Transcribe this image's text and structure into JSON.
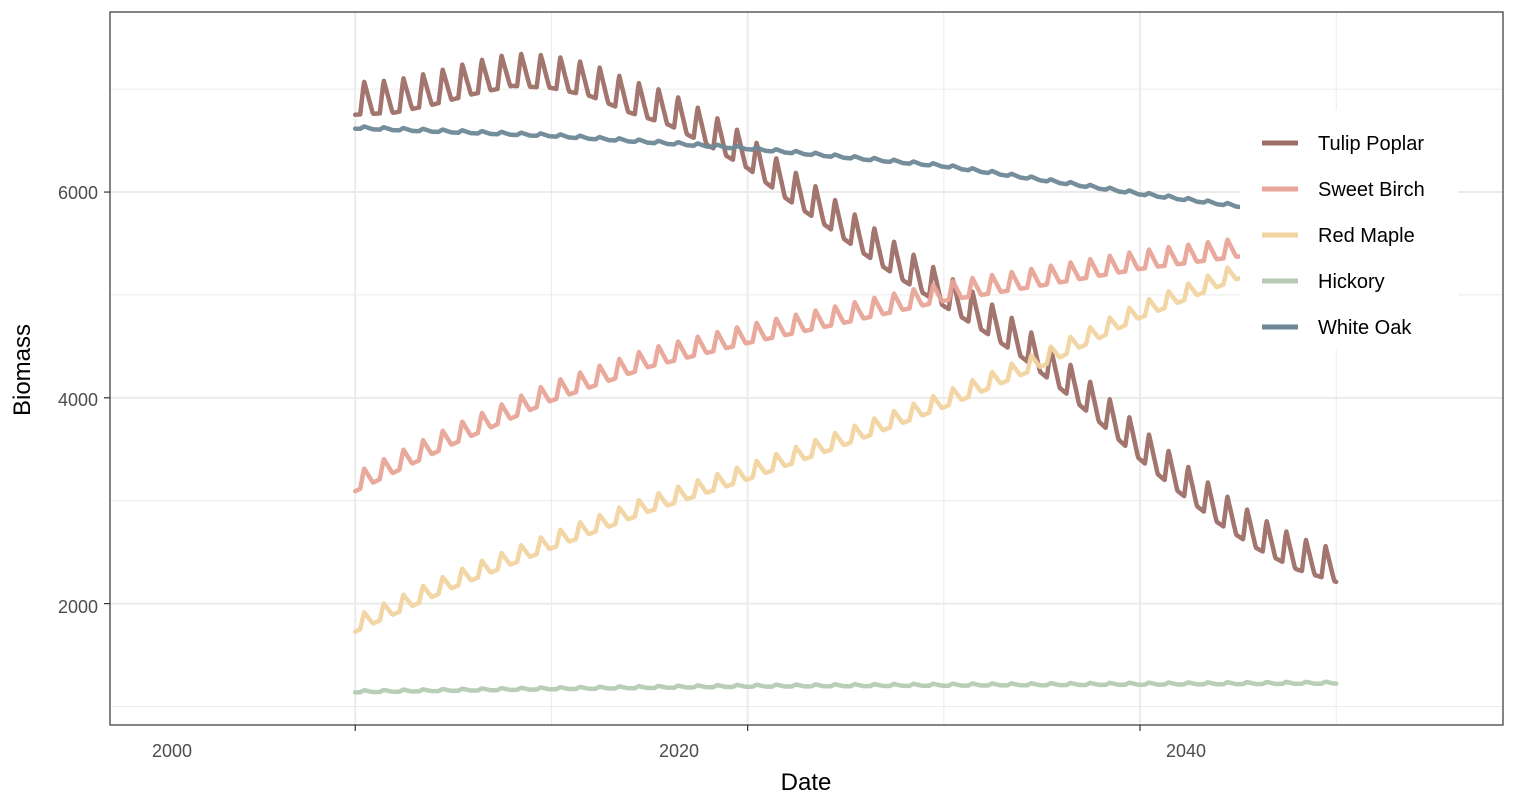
{
  "chart_data": {
    "type": "line",
    "title": "",
    "xlabel": "Date",
    "ylabel": "Biomass",
    "xlim": [
      1987.5,
      2058.5
    ],
    "ylim": [
      820,
      7750
    ],
    "x_ticks": [
      2000,
      2020,
      2040
    ],
    "x_minor_ticks": [
      2010,
      2030,
      2050
    ],
    "y_ticks": [
      2000,
      4000,
      6000
    ],
    "y_minor_ticks": [
      1000,
      3000,
      5000,
      7000
    ],
    "x_tick_labels": [
      "2000",
      "2020",
      "2040"
    ],
    "y_tick_labels": [
      "2000",
      "4000",
      "6000"
    ],
    "grid": true,
    "legend_position": "right",
    "x_range": [
      2000,
      2050
    ],
    "series": [
      {
        "name": "Tulip Poplar",
        "color": "#9E6E67",
        "seasonal_amplitude": 320,
        "points": [
          [
            2000,
            6800
          ],
          [
            2002,
            6820
          ],
          [
            2004,
            6900
          ],
          [
            2006,
            7000
          ],
          [
            2008,
            7080
          ],
          [
            2010,
            7060
          ],
          [
            2012,
            6980
          ],
          [
            2014,
            6820
          ],
          [
            2016,
            6700
          ],
          [
            2018,
            6500
          ],
          [
            2020,
            6280
          ],
          [
            2022,
            5980
          ],
          [
            2024,
            5720
          ],
          [
            2026,
            5440
          ],
          [
            2028,
            5180
          ],
          [
            2030,
            4940
          ],
          [
            2032,
            4700
          ],
          [
            2034,
            4440
          ],
          [
            2036,
            4130
          ],
          [
            2038,
            3800
          ],
          [
            2040,
            3450
          ],
          [
            2042,
            3130
          ],
          [
            2044,
            2830
          ],
          [
            2046,
            2580
          ],
          [
            2048,
            2380
          ],
          [
            2050,
            2260
          ]
        ]
      },
      {
        "name": "Sweet Birch",
        "color": "#E8A598",
        "seasonal_amplitude": 180,
        "points": [
          [
            2000,
            3120
          ],
          [
            2005,
            3580
          ],
          [
            2010,
            4000
          ],
          [
            2015,
            4330
          ],
          [
            2020,
            4560
          ],
          [
            2025,
            4760
          ],
          [
            2030,
            4970
          ],
          [
            2035,
            5120
          ],
          [
            2040,
            5280
          ],
          [
            2045,
            5400
          ],
          [
            2050,
            5480
          ]
        ]
      },
      {
        "name": "Red Maple",
        "color": "#F2D4A0",
        "seasonal_amplitude": 150,
        "points": [
          [
            2000,
            1750
          ],
          [
            2005,
            2180
          ],
          [
            2010,
            2560
          ],
          [
            2015,
            2920
          ],
          [
            2020,
            3230
          ],
          [
            2025,
            3570
          ],
          [
            2030,
            3930
          ],
          [
            2035,
            4330
          ],
          [
            2040,
            4800
          ],
          [
            2045,
            5180
          ],
          [
            2050,
            5400
          ]
        ]
      },
      {
        "name": "Hickory",
        "color": "#B5CBB3",
        "seasonal_amplitude": 20,
        "points": [
          [
            2000,
            1140
          ],
          [
            2010,
            1170
          ],
          [
            2020,
            1195
          ],
          [
            2030,
            1205
          ],
          [
            2040,
            1215
          ],
          [
            2050,
            1225
          ]
        ]
      },
      {
        "name": "White Oak",
        "color": "#6E8896",
        "seasonal_amplitude": 25,
        "points": [
          [
            2000,
            6620
          ],
          [
            2010,
            6545
          ],
          [
            2020,
            6420
          ],
          [
            2030,
            6250
          ],
          [
            2040,
            5980
          ],
          [
            2045,
            5860
          ],
          [
            2050,
            5780
          ]
        ]
      }
    ]
  }
}
